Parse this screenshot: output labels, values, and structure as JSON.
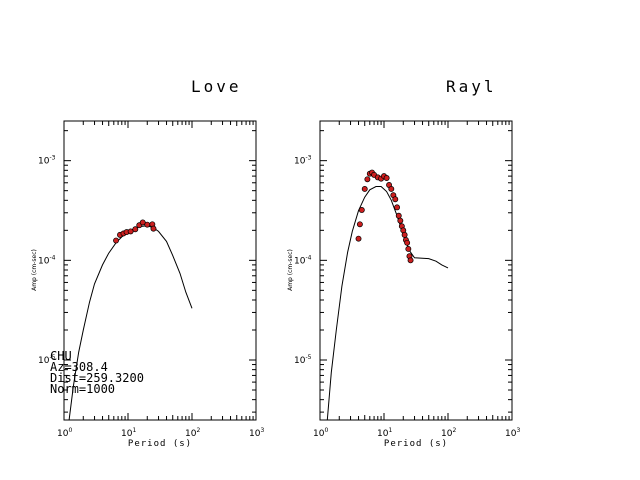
{
  "chart_data": [
    {
      "type": "line",
      "title": "Love",
      "xlabel": "Period (s)",
      "ylabel": "Amp (cm-sec)",
      "x_scale": "log",
      "y_scale": "log",
      "xlim": [
        1,
        1000
      ],
      "ylim": [
        2.5e-06,
        0.0025
      ],
      "x_ticks": [
        "10^0",
        "10^1",
        "10^2",
        "10^3"
      ],
      "y_ticks": [
        "10^-5",
        "10^-4",
        "10^-3"
      ],
      "grid": false,
      "series": [
        {
          "kind": "line",
          "x": [
            1.2,
            1.4,
            1.7,
            2.0,
            2.5,
            3.0,
            4.0,
            5.0,
            6.5,
            8.0,
            10,
            12,
            15,
            20,
            25,
            30,
            40,
            50,
            65,
            80,
            100
          ],
          "y": [
            2.5e-06,
            5.5e-06,
            1.2e-05,
            2e-05,
            3.8e-05,
            5.8e-05,
            9e-05,
            0.000118,
            0.00015,
            0.000172,
            0.00019,
            0.000205,
            0.000218,
            0.000222,
            0.000212,
            0.000195,
            0.000155,
            0.000112,
            7.4e-05,
            4.8e-05,
            3.3e-05
          ]
        },
        {
          "kind": "scatter",
          "x": [
            6.5,
            7.5,
            8.5,
            9.5,
            11,
            13,
            15,
            17,
            20,
            24,
            25
          ],
          "y": [
            0.000158,
            0.00018,
            0.000186,
            0.000192,
            0.000195,
            0.000205,
            0.000225,
            0.00024,
            0.000228,
            0.00023,
            0.000208
          ]
        }
      ],
      "annotations": [
        "CHU",
        "Az=308.4",
        "Dist=259.3200",
        "Norm=1000"
      ]
    },
    {
      "type": "line",
      "title": "Rayl",
      "xlabel": "Period (s)",
      "ylabel": "Amp (cm-sec)",
      "x_scale": "log",
      "y_scale": "log",
      "xlim": [
        1,
        1000
      ],
      "ylim": [
        2.5e-06,
        0.0025
      ],
      "x_ticks": [
        "10^0",
        "10^1",
        "10^2",
        "10^3"
      ],
      "y_ticks": [
        "10^-5",
        "10^-4",
        "10^-3"
      ],
      "grid": false,
      "series": [
        {
          "kind": "line",
          "x": [
            1.3,
            1.5,
            1.8,
            2.2,
            2.7,
            3.2,
            4.0,
            5.0,
            6.0,
            7.5,
            9,
            11,
            13,
            16,
            20,
            25,
            30,
            40,
            50,
            65,
            80,
            100
          ],
          "y": [
            2.5e-06,
            7.5e-06,
            2e-05,
            5.5e-05,
            0.00012,
            0.000195,
            0.000315,
            0.00043,
            0.00051,
            0.00055,
            0.00055,
            0.00049,
            0.0004,
            0.00028,
            0.00018,
            0.000125,
            0.000106,
            0.000105,
            0.000104,
            9.8e-05,
            9e-05,
            8.4e-05
          ]
        },
        {
          "kind": "scatter",
          "x": [
            4.0,
            4.2,
            4.5,
            5.0,
            5.5,
            6.0,
            6.5,
            7.0,
            8.0,
            9.0,
            10,
            11,
            12,
            13,
            14,
            15,
            16,
            17,
            18,
            19,
            20,
            21,
            22,
            23,
            24,
            25,
            26
          ],
          "y": [
            0.000165,
            0.00023,
            0.00032,
            0.00052,
            0.00065,
            0.00074,
            0.00076,
            0.00072,
            0.00068,
            0.00066,
            0.0007,
            0.00067,
            0.00057,
            0.00052,
            0.00045,
            0.00041,
            0.00034,
            0.00028,
            0.00025,
            0.00022,
            0.0002,
            0.00018,
            0.00016,
            0.00015,
            0.00013,
            0.00011,
            0.0001
          ]
        }
      ]
    }
  ]
}
